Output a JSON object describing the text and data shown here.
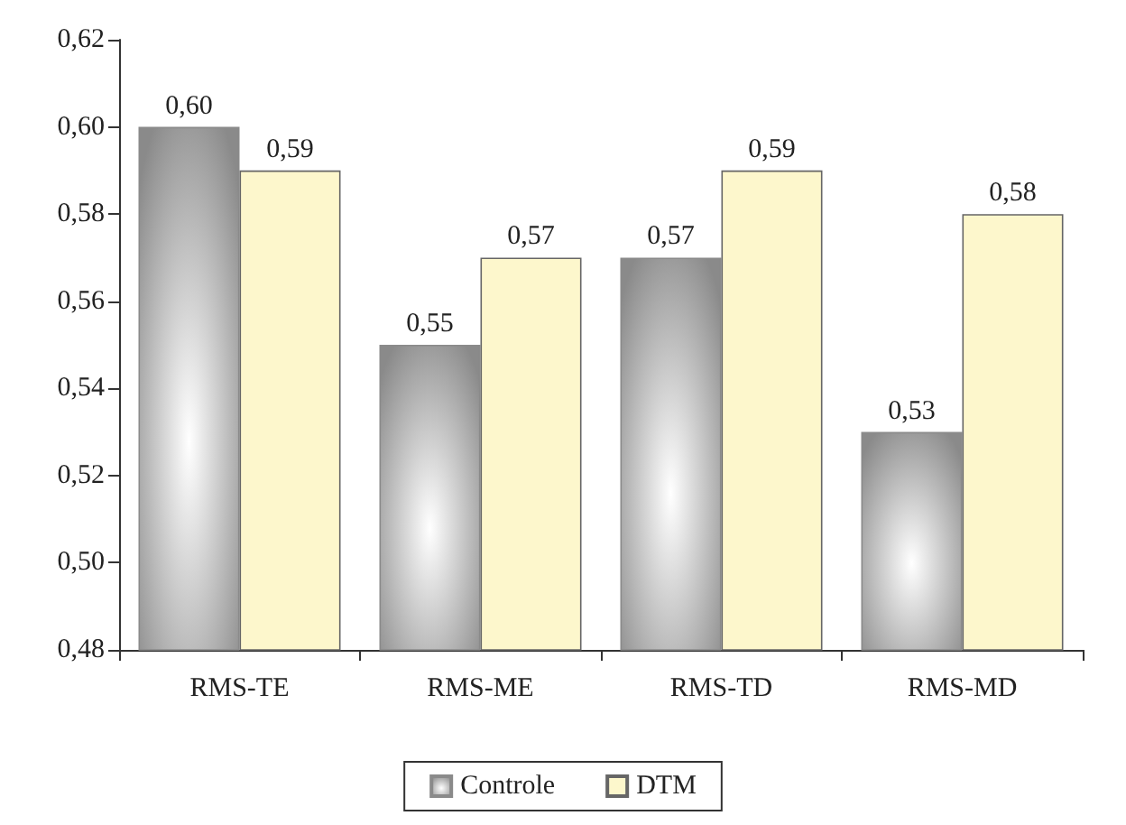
{
  "chart_data": {
    "type": "bar",
    "categories": [
      "RMS-TE",
      "RMS-ME",
      "RMS-TD",
      "RMS-MD"
    ],
    "series": [
      {
        "name": "Controle",
        "color": "#8a8a8a",
        "values": [
          0.6,
          0.55,
          0.57,
          0.53
        ],
        "value_labels": [
          "0,60",
          "0,55",
          "0,57",
          "0,53"
        ]
      },
      {
        "name": "DTM",
        "color": "#fdf7cc",
        "values": [
          0.59,
          0.57,
          0.59,
          0.58
        ],
        "value_labels": [
          "0,59",
          "0,57",
          "0,59",
          "0,58"
        ]
      }
    ],
    "ylim": [
      0.48,
      0.62
    ],
    "yticks": [
      {
        "value": 0.48,
        "label": "0,48"
      },
      {
        "value": 0.5,
        "label": "0,50"
      },
      {
        "value": 0.52,
        "label": "0,52"
      },
      {
        "value": 0.54,
        "label": "0,54"
      },
      {
        "value": 0.56,
        "label": "0,56"
      },
      {
        "value": 0.58,
        "label": "0,58"
      },
      {
        "value": 0.6,
        "label": "0,60"
      },
      {
        "value": 0.62,
        "label": "0,62"
      }
    ],
    "grid": false,
    "legend": "bottom"
  }
}
